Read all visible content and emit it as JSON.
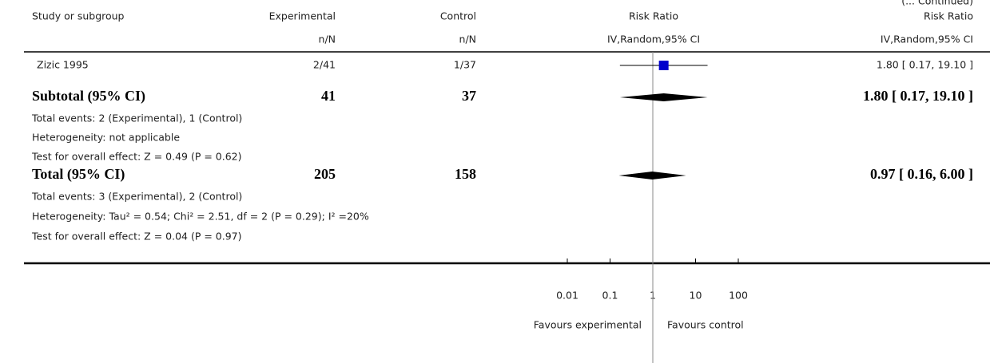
{
  "chart_data": {
    "type": "forest",
    "continued": "(... Continued)",
    "headers": {
      "study": "Study or subgroup",
      "experimental": [
        "Experimental",
        "n/N"
      ],
      "control": [
        "Control",
        "n/N"
      ],
      "plot": [
        "Risk Ratio",
        "IV,Random,95% CI"
      ],
      "effect": [
        "Risk Ratio",
        "IV,Random,95% CI"
      ]
    },
    "rows": [
      {
        "kind": "study",
        "label": "Zizic 1995",
        "experimental": "2/41",
        "control": "1/37",
        "rr": 1.8,
        "ci": [
          0.17,
          19.1
        ],
        "effect_label": "1.80 [ 0.17, 19.10 ]"
      },
      {
        "kind": "summary",
        "label": "Subtotal (95% CI)",
        "experimental": 41,
        "control": 37,
        "rr": 1.8,
        "ci": [
          0.17,
          19.1
        ],
        "effect_label": "1.80 [ 0.17, 19.10 ]"
      },
      {
        "kind": "note",
        "label": "Total events: 2 (Experimental), 1 (Control)"
      },
      {
        "kind": "note",
        "label": "Heterogeneity: not applicable"
      },
      {
        "kind": "note",
        "label": "Test for overall effect: Z = 0.49 (P = 0.62)"
      },
      {
        "kind": "summary",
        "label": "Total (95% CI)",
        "experimental": 205,
        "control": 158,
        "rr": 0.97,
        "ci": [
          0.16,
          6.0
        ],
        "effect_label": "0.97 [ 0.16, 6.00 ]"
      },
      {
        "kind": "note",
        "label": "Total events: 3 (Experimental), 2 (Control)"
      },
      {
        "kind": "note",
        "label": "Heterogeneity: Tau² = 0.54; Chi² = 2.51, df = 2 (P = 0.29); I² =20%"
      },
      {
        "kind": "note",
        "label": "Test for overall effect: Z = 0.04 (P = 0.97)"
      }
    ],
    "xscale": "log",
    "xlim": [
      0.01,
      100
    ],
    "xticks": [
      0.01,
      0.1,
      1,
      10,
      100
    ],
    "favours": [
      "Favours experimental",
      "Favours control"
    ],
    "color": "#0000cc"
  }
}
